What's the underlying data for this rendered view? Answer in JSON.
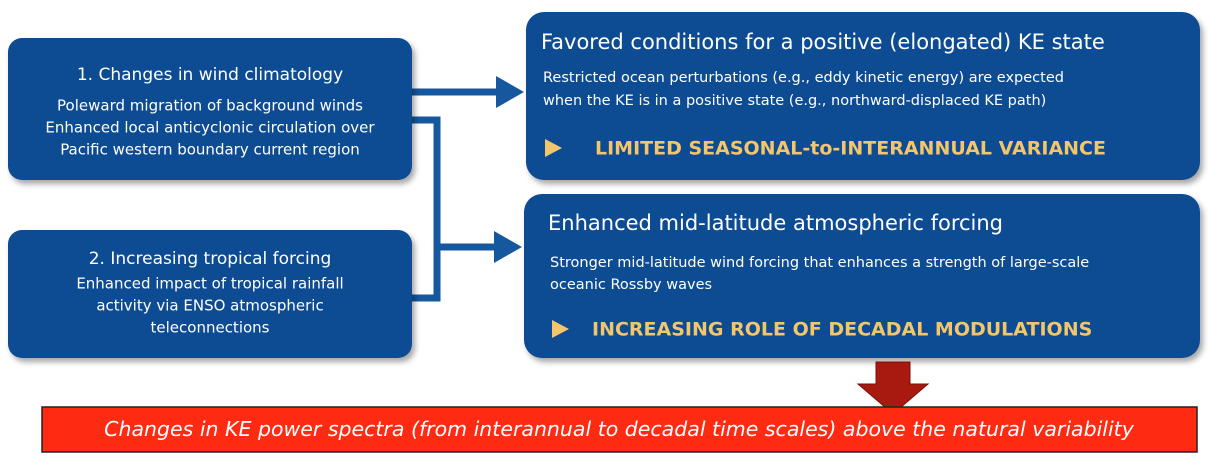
{
  "drivers": [
    {
      "title": "1. Changes in wind climatology",
      "lines": [
        "Poleward migration of background winds",
        "Enhanced local anticyclonic circulation over",
        "Pacific western boundary current region"
      ]
    },
    {
      "title": "2. Increasing tropical forcing",
      "lines": [
        "Enhanced impact of tropical rainfall",
        "activity via ENSO atmospheric",
        "teleconnections"
      ]
    }
  ],
  "outcomes": [
    {
      "title": "Favored conditions for a positive (elongated) KE state",
      "lines": [
        "Restricted ocean perturbations (e.g., eddy kinetic energy) are expected",
        "when the KE is in a positive state (e.g., northward-displaced KE path)"
      ],
      "highlight": "LIMITED SEASONAL-to-INTERANNUAL VARIANCE"
    },
    {
      "title": "Enhanced mid-latitude atmospheric forcing",
      "lines": [
        "Stronger mid-latitude wind forcing that enhances a strength of large-scale",
        "oceanic Rossby waves"
      ],
      "highlight": "INCREASING ROLE OF DECADAL MODULATIONS"
    }
  ],
  "conclusion": "Changes in KE power spectra (from interannual to decadal time scales) above the natural variability"
}
